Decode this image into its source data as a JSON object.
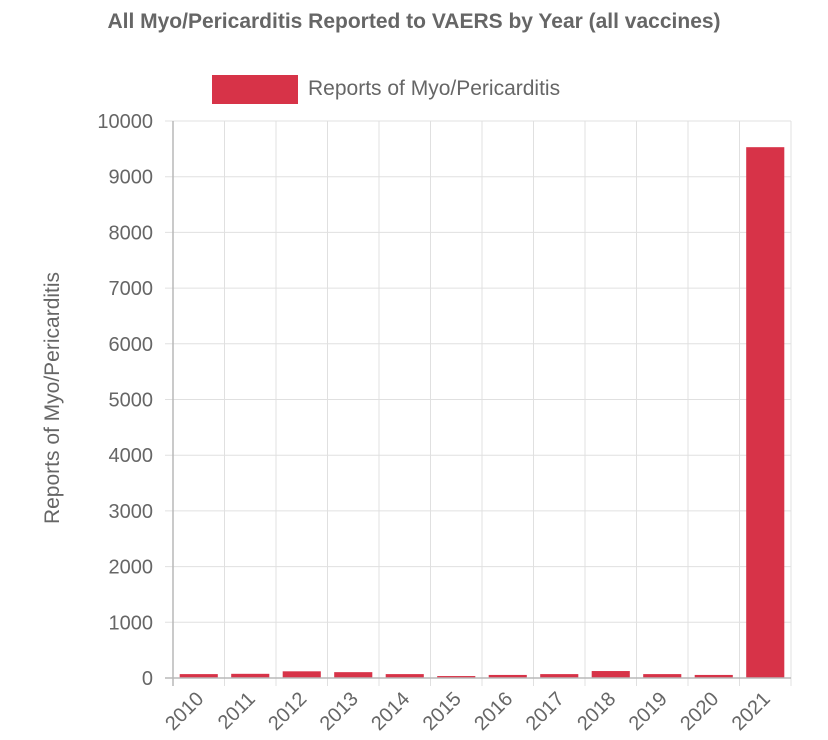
{
  "chart_data": {
    "type": "bar",
    "title": "All Myo/Pericarditis Reported to VAERS by Year (all vaccines)",
    "xlabel": "",
    "ylabel": "Reports of Myo/Pericarditis",
    "categories": [
      "2010",
      "2011",
      "2012",
      "2013",
      "2014",
      "2015",
      "2016",
      "2017",
      "2018",
      "2019",
      "2020",
      "2021"
    ],
    "series": [
      {
        "name": "Reports of Myo/Pericarditis",
        "values": [
          70,
          75,
          120,
          105,
          70,
          35,
          55,
          70,
          125,
          70,
          55,
          9530
        ],
        "color": "#d73348"
      }
    ],
    "ylim": [
      0,
      10000
    ],
    "yticks": [
      0,
      1000,
      2000,
      3000,
      4000,
      5000,
      6000,
      7000,
      8000,
      9000,
      10000
    ],
    "grid": true,
    "legend": "top-center"
  }
}
